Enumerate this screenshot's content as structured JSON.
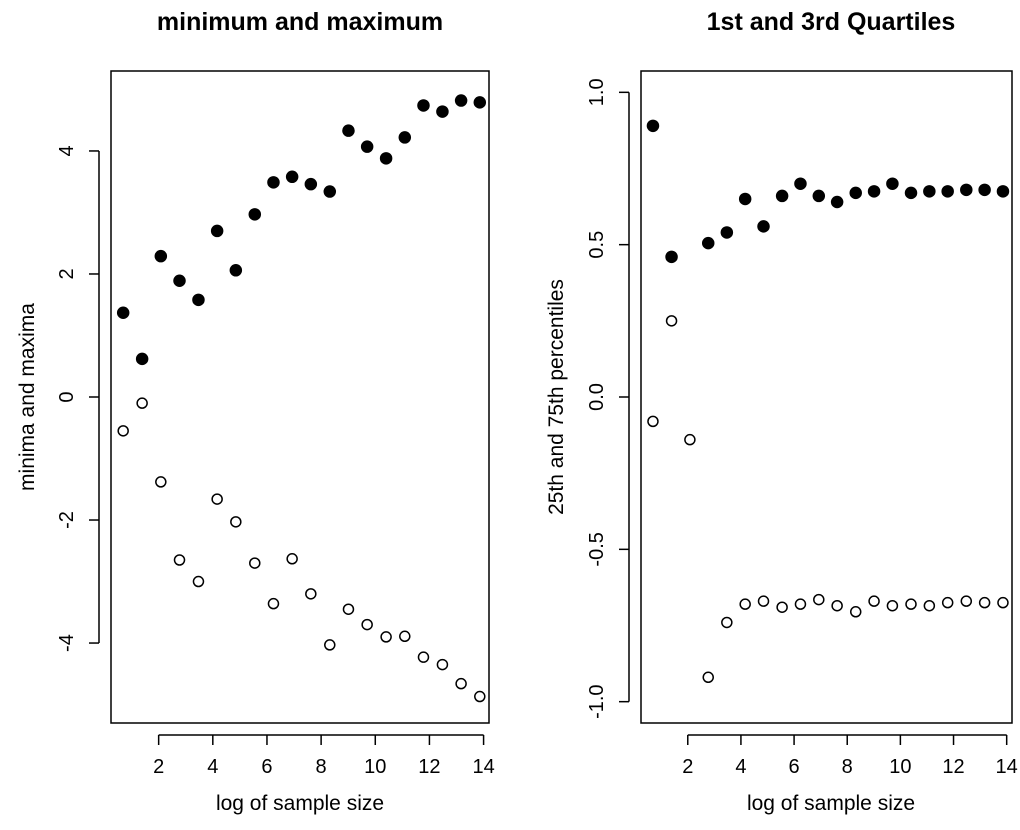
{
  "chart_data": [
    {
      "type": "scatter",
      "title": "minimum and maximum",
      "xlabel": "log of sample size",
      "ylabel": "minima and maxima",
      "xlim": [
        0.24,
        14.2
      ],
      "ylim": [
        -5.3,
        5.3
      ],
      "xticks": [
        "2",
        "4",
        "6",
        "8",
        "10",
        "12",
        "14"
      ],
      "yticks": [
        "-4",
        "-2",
        "0",
        "2",
        "4"
      ],
      "x": [
        0.69,
        1.39,
        2.08,
        2.77,
        3.47,
        4.16,
        4.85,
        5.55,
        6.24,
        6.93,
        7.62,
        8.32,
        9.01,
        9.7,
        10.4,
        11.09,
        11.78,
        12.48,
        13.17,
        13.86
      ],
      "series": [
        {
          "marker": "filled",
          "values": [
            1.37,
            0.62,
            2.29,
            1.89,
            1.58,
            2.7,
            2.06,
            2.97,
            3.49,
            3.58,
            3.46,
            3.34,
            4.33,
            4.07,
            3.88,
            4.22,
            4.74,
            4.64,
            4.82,
            4.79
          ]
        },
        {
          "marker": "open",
          "values": [
            -0.55,
            -0.1,
            -1.38,
            -2.65,
            -3.0,
            -1.66,
            -2.03,
            -2.7,
            -3.36,
            -2.63,
            -3.2,
            -4.03,
            -3.45,
            -3.7,
            -3.9,
            -3.89,
            -4.23,
            -4.35,
            -4.66,
            -4.87
          ]
        }
      ]
    },
    {
      "type": "scatter",
      "title": "1st and 3rd Quartiles",
      "xlabel": "log of sample size",
      "ylabel": "25th and 75th percentiles",
      "xlim": [
        0.24,
        14.2
      ],
      "ylim": [
        -1.07,
        1.07
      ],
      "xticks": [
        "2",
        "4",
        "6",
        "8",
        "10",
        "12",
        "14"
      ],
      "yticks": [
        "-1.0",
        "-0.5",
        "0.0",
        "0.5",
        "1.0"
      ],
      "x": [
        0.69,
        1.39,
        2.08,
        2.77,
        3.47,
        4.16,
        4.85,
        5.55,
        6.24,
        6.93,
        7.62,
        8.32,
        9.01,
        9.7,
        10.4,
        11.09,
        11.78,
        12.48,
        13.17,
        13.86
      ],
      "series": [
        {
          "marker": "filled",
          "values": [
            0.89,
            0.46,
            null,
            0.505,
            0.54,
            0.65,
            0.56,
            0.66,
            0.7,
            0.66,
            0.64,
            0.67,
            0.675,
            0.7,
            0.67,
            0.675,
            0.675,
            0.68,
            0.68,
            0.675
          ]
        },
        {
          "marker": "open",
          "values": [
            -0.08,
            0.25,
            -0.14,
            -0.92,
            -0.74,
            -0.68,
            -0.67,
            -0.69,
            -0.68,
            -0.665,
            -0.685,
            -0.705,
            -0.67,
            -0.685,
            -0.68,
            -0.685,
            -0.675,
            -0.67,
            -0.675,
            -0.675
          ]
        }
      ]
    }
  ]
}
